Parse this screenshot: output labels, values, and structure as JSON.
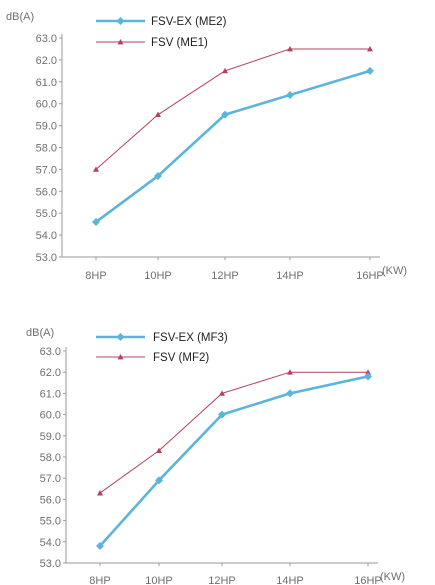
{
  "colors": {
    "series_primary": "#5bb4dc",
    "series_secondary": "#b5415c",
    "axis": "#9a9a9a",
    "text": "#6f6f6f"
  },
  "chart_data": [
    {
      "type": "line",
      "ylabel": "dB(A)",
      "xlabel": "(KW)",
      "categories": [
        "8HP",
        "10HP",
        "12HP",
        "14HP",
        "16HP"
      ],
      "ylim": [
        53.0,
        63.0
      ],
      "yticks": [
        "53.0",
        "54.0",
        "55.0",
        "56.0",
        "57.0",
        "58.0",
        "59.0",
        "60.0",
        "61.0",
        "62.0",
        "63.0"
      ],
      "grid": false,
      "legend": "top-left",
      "series": [
        {
          "name": "FSV-EX (ME2)",
          "marker": "diamond",
          "values": [
            54.6,
            56.7,
            59.5,
            60.4,
            61.5
          ]
        },
        {
          "name": "FSV (ME1)",
          "marker": "triangle",
          "values": [
            57.0,
            59.5,
            61.5,
            62.5,
            62.5
          ]
        }
      ]
    },
    {
      "type": "line",
      "ylabel": "dB(A)",
      "xlabel": "(KW)",
      "categories": [
        "8HP",
        "10HP",
        "12HP",
        "14HP",
        "16HP"
      ],
      "ylim": [
        53.0,
        63.0
      ],
      "yticks": [
        "53.0",
        "54.0",
        "55.0",
        "56.0",
        "57.0",
        "58.0",
        "59.0",
        "60.0",
        "61.0",
        "62.0",
        "63.0"
      ],
      "grid": false,
      "legend": "top-left",
      "series": [
        {
          "name": "FSV-EX (MF3)",
          "marker": "diamond",
          "values": [
            53.8,
            56.9,
            60.0,
            61.0,
            61.8
          ]
        },
        {
          "name": "FSV (MF2)",
          "marker": "triangle",
          "values": [
            56.3,
            58.3,
            61.0,
            62.0,
            62.0
          ]
        }
      ]
    }
  ]
}
